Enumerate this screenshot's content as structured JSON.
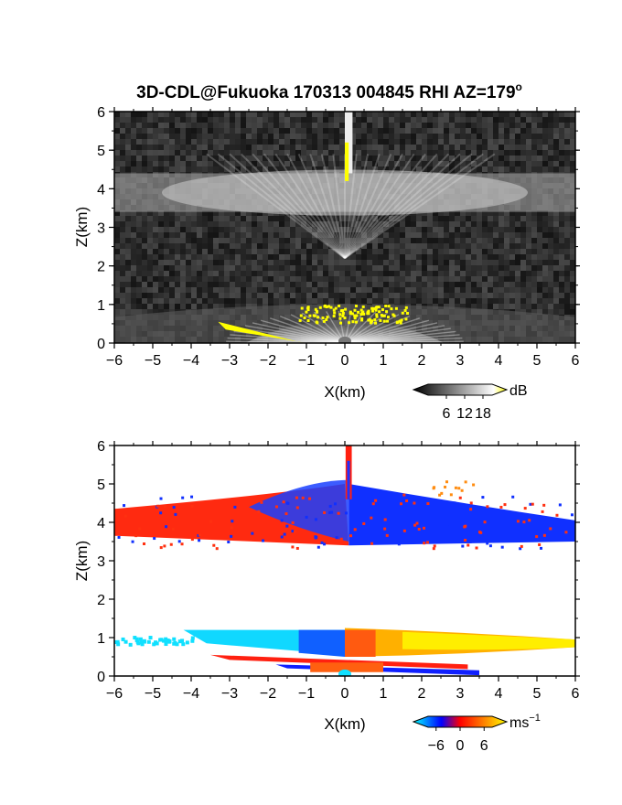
{
  "title": "3D-CDL@Fukuoka 170313 004845 RHI AZ=179",
  "title_degree_symbol": "o",
  "chart_data": [
    {
      "type": "heatmap",
      "quantity": "reflectivity",
      "xlabel": "X(km)",
      "ylabel": "Z(km)",
      "xlim": [
        -6,
        6
      ],
      "ylim": [
        0,
        6
      ],
      "xticks": [
        -6,
        -5,
        -4,
        -3,
        -2,
        -1,
        0,
        1,
        2,
        3,
        4,
        5,
        6
      ],
      "yticks": [
        0,
        1,
        2,
        3,
        4,
        5,
        6
      ],
      "colorbar": {
        "unit": "dB",
        "ticks": [
          6,
          12,
          18
        ],
        "range": [
          0,
          21
        ],
        "colors": [
          "#000000",
          "#ffffff",
          "#ffff00"
        ],
        "orientation": "horizontal",
        "placement": "bottom-right"
      },
      "layers": [
        {
          "z_bottom": 3.4,
          "z_top": 4.4,
          "x_range": [
            -6,
            6
          ],
          "level_db": 10
        },
        {
          "z_bottom": 0.0,
          "z_top": 1.1,
          "x_range": [
            -6,
            6
          ],
          "level_db": 12
        },
        {
          "z_bottom": 4.4,
          "z_top": 6.0,
          "x_range": [
            0.0,
            0.2
          ],
          "level_db": 18
        }
      ]
    },
    {
      "type": "heatmap",
      "quantity": "doppler velocity",
      "xlabel": "X(km)",
      "ylabel": "Z(km)",
      "xlim": [
        -6,
        6
      ],
      "ylim": [
        0,
        6
      ],
      "xticks": [
        -6,
        -5,
        -4,
        -3,
        -2,
        -1,
        0,
        1,
        2,
        3,
        4,
        5,
        6
      ],
      "yticks": [
        0,
        1,
        2,
        3,
        4,
        5,
        6
      ],
      "colorbar": {
        "unit": "ms",
        "unit_exponent": "−1",
        "ticks": [
          "−6",
          "0",
          "6"
        ],
        "tick_values": [
          -6,
          0,
          6
        ],
        "range": [
          -8,
          8
        ],
        "colors": [
          "#00ffff",
          "#0000ff",
          "#ff0000",
          "#ffff00"
        ],
        "orientation": "horizontal",
        "placement": "bottom-right"
      },
      "layers": [
        {
          "z_bottom": 3.4,
          "z_top": 4.6,
          "x_range": [
            -6,
            0.1
          ],
          "velocity_ms": 2
        },
        {
          "z_bottom": 3.4,
          "z_top": 4.6,
          "x_range": [
            0.1,
            6
          ],
          "velocity_ms": -2
        },
        {
          "z_bottom": 0.6,
          "z_top": 1.2,
          "x_range": [
            -6,
            0
          ],
          "velocity_ms": -6
        },
        {
          "z_bottom": 0.6,
          "z_top": 1.2,
          "x_range": [
            0,
            6
          ],
          "velocity_ms": 6
        }
      ]
    }
  ]
}
